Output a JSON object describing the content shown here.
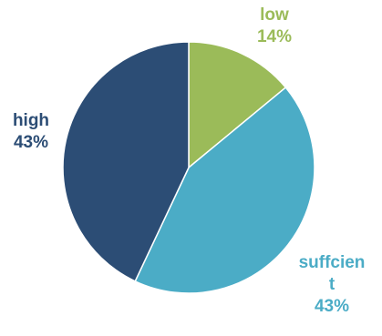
{
  "chart_data": {
    "type": "pie",
    "title": "",
    "slices": [
      {
        "label": "low",
        "label_lines": [
          "low"
        ],
        "value": 14,
        "value_label": "14%",
        "color": "#9BBB59"
      },
      {
        "label": "suffcient",
        "label_lines": [
          "suffcien",
          "t"
        ],
        "value": 43,
        "value_label": "43%",
        "color": "#4BACC6"
      },
      {
        "label": "high",
        "label_lines": [
          "high"
        ],
        "value": 43,
        "value_label": "43%",
        "color": "#2C4D75"
      }
    ],
    "start_angle": "12 o'clock",
    "direction": "clockwise",
    "slice_border_color": "#FFFFFF",
    "legend": "none",
    "data_labels": "outside, category name and percentage, colored like slice"
  }
}
